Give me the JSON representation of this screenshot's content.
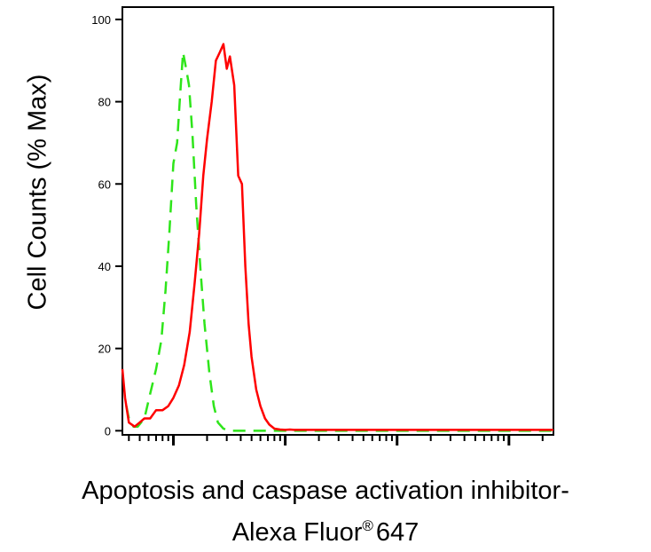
{
  "chart_data": {
    "type": "line",
    "title": "",
    "ylabel": "Cell Counts (% Max)",
    "xlabel_line1": "Apoptosis and caspase activation inhibitor-",
    "xlabel_line2_main": "Alexa Fluor",
    "xlabel_line2_sup": "®",
    "xlabel_line2_end": "647",
    "x_scale": "log",
    "xlim": [
      0.35,
      2500
    ],
    "ylim": [
      -1,
      103
    ],
    "y_ticks": [
      0,
      20,
      40,
      60,
      80,
      100
    ],
    "x_decades": [
      1,
      10,
      100,
      1000
    ],
    "x_tick_labels": [],
    "grid": false,
    "legend": "none",
    "series": [
      {
        "color": "#2ee51a",
        "dash": "dashed",
        "x": [
          0.38,
          0.4,
          0.44,
          0.48,
          0.55,
          0.62,
          0.7,
          0.78,
          0.85,
          0.92,
          1.0,
          1.08,
          1.15,
          1.22,
          1.3,
          1.38,
          1.48,
          1.6,
          1.75,
          1.9,
          2.1,
          2.3,
          2.5,
          2.8,
          3.2,
          3.6,
          4.2,
          5.0,
          7.0,
          10.0,
          100.0,
          1000.0,
          2500.0
        ],
        "y": [
          6,
          3,
          1,
          1,
          3,
          9,
          15,
          22,
          34,
          48,
          65,
          70,
          82,
          92,
          88,
          84,
          72,
          55,
          39,
          26,
          14,
          6,
          2,
          0.5,
          0,
          0,
          0,
          0,
          0,
          0,
          0,
          0,
          0
        ]
      },
      {
        "color": "#ff0000",
        "dash": "solid",
        "x": [
          0.35,
          0.37,
          0.4,
          0.45,
          0.5,
          0.55,
          0.62,
          0.7,
          0.8,
          0.9,
          1.0,
          1.12,
          1.25,
          1.4,
          1.55,
          1.7,
          1.85,
          2.0,
          2.2,
          2.4,
          2.6,
          2.8,
          3.0,
          3.2,
          3.5,
          3.8,
          4.1,
          4.4,
          4.7,
          5.0,
          5.5,
          6.0,
          6.6,
          7.2,
          8.0,
          9.0,
          10.0,
          11.0,
          12.0,
          14.0,
          20.0,
          50.0,
          100.0,
          1000.0,
          2500.0
        ],
        "y": [
          15,
          8,
          2,
          1,
          2,
          3,
          3,
          5,
          5,
          6,
          8,
          11,
          16,
          24,
          36,
          48,
          62,
          71,
          80,
          90,
          92,
          94,
          88,
          91,
          84,
          62,
          60,
          40,
          26,
          18,
          10,
          6,
          3,
          1.5,
          0.5,
          0.3,
          0.2,
          0.3,
          0.2,
          0.2,
          0.2,
          0.2,
          0.2,
          0.2,
          0.2
        ]
      }
    ]
  }
}
